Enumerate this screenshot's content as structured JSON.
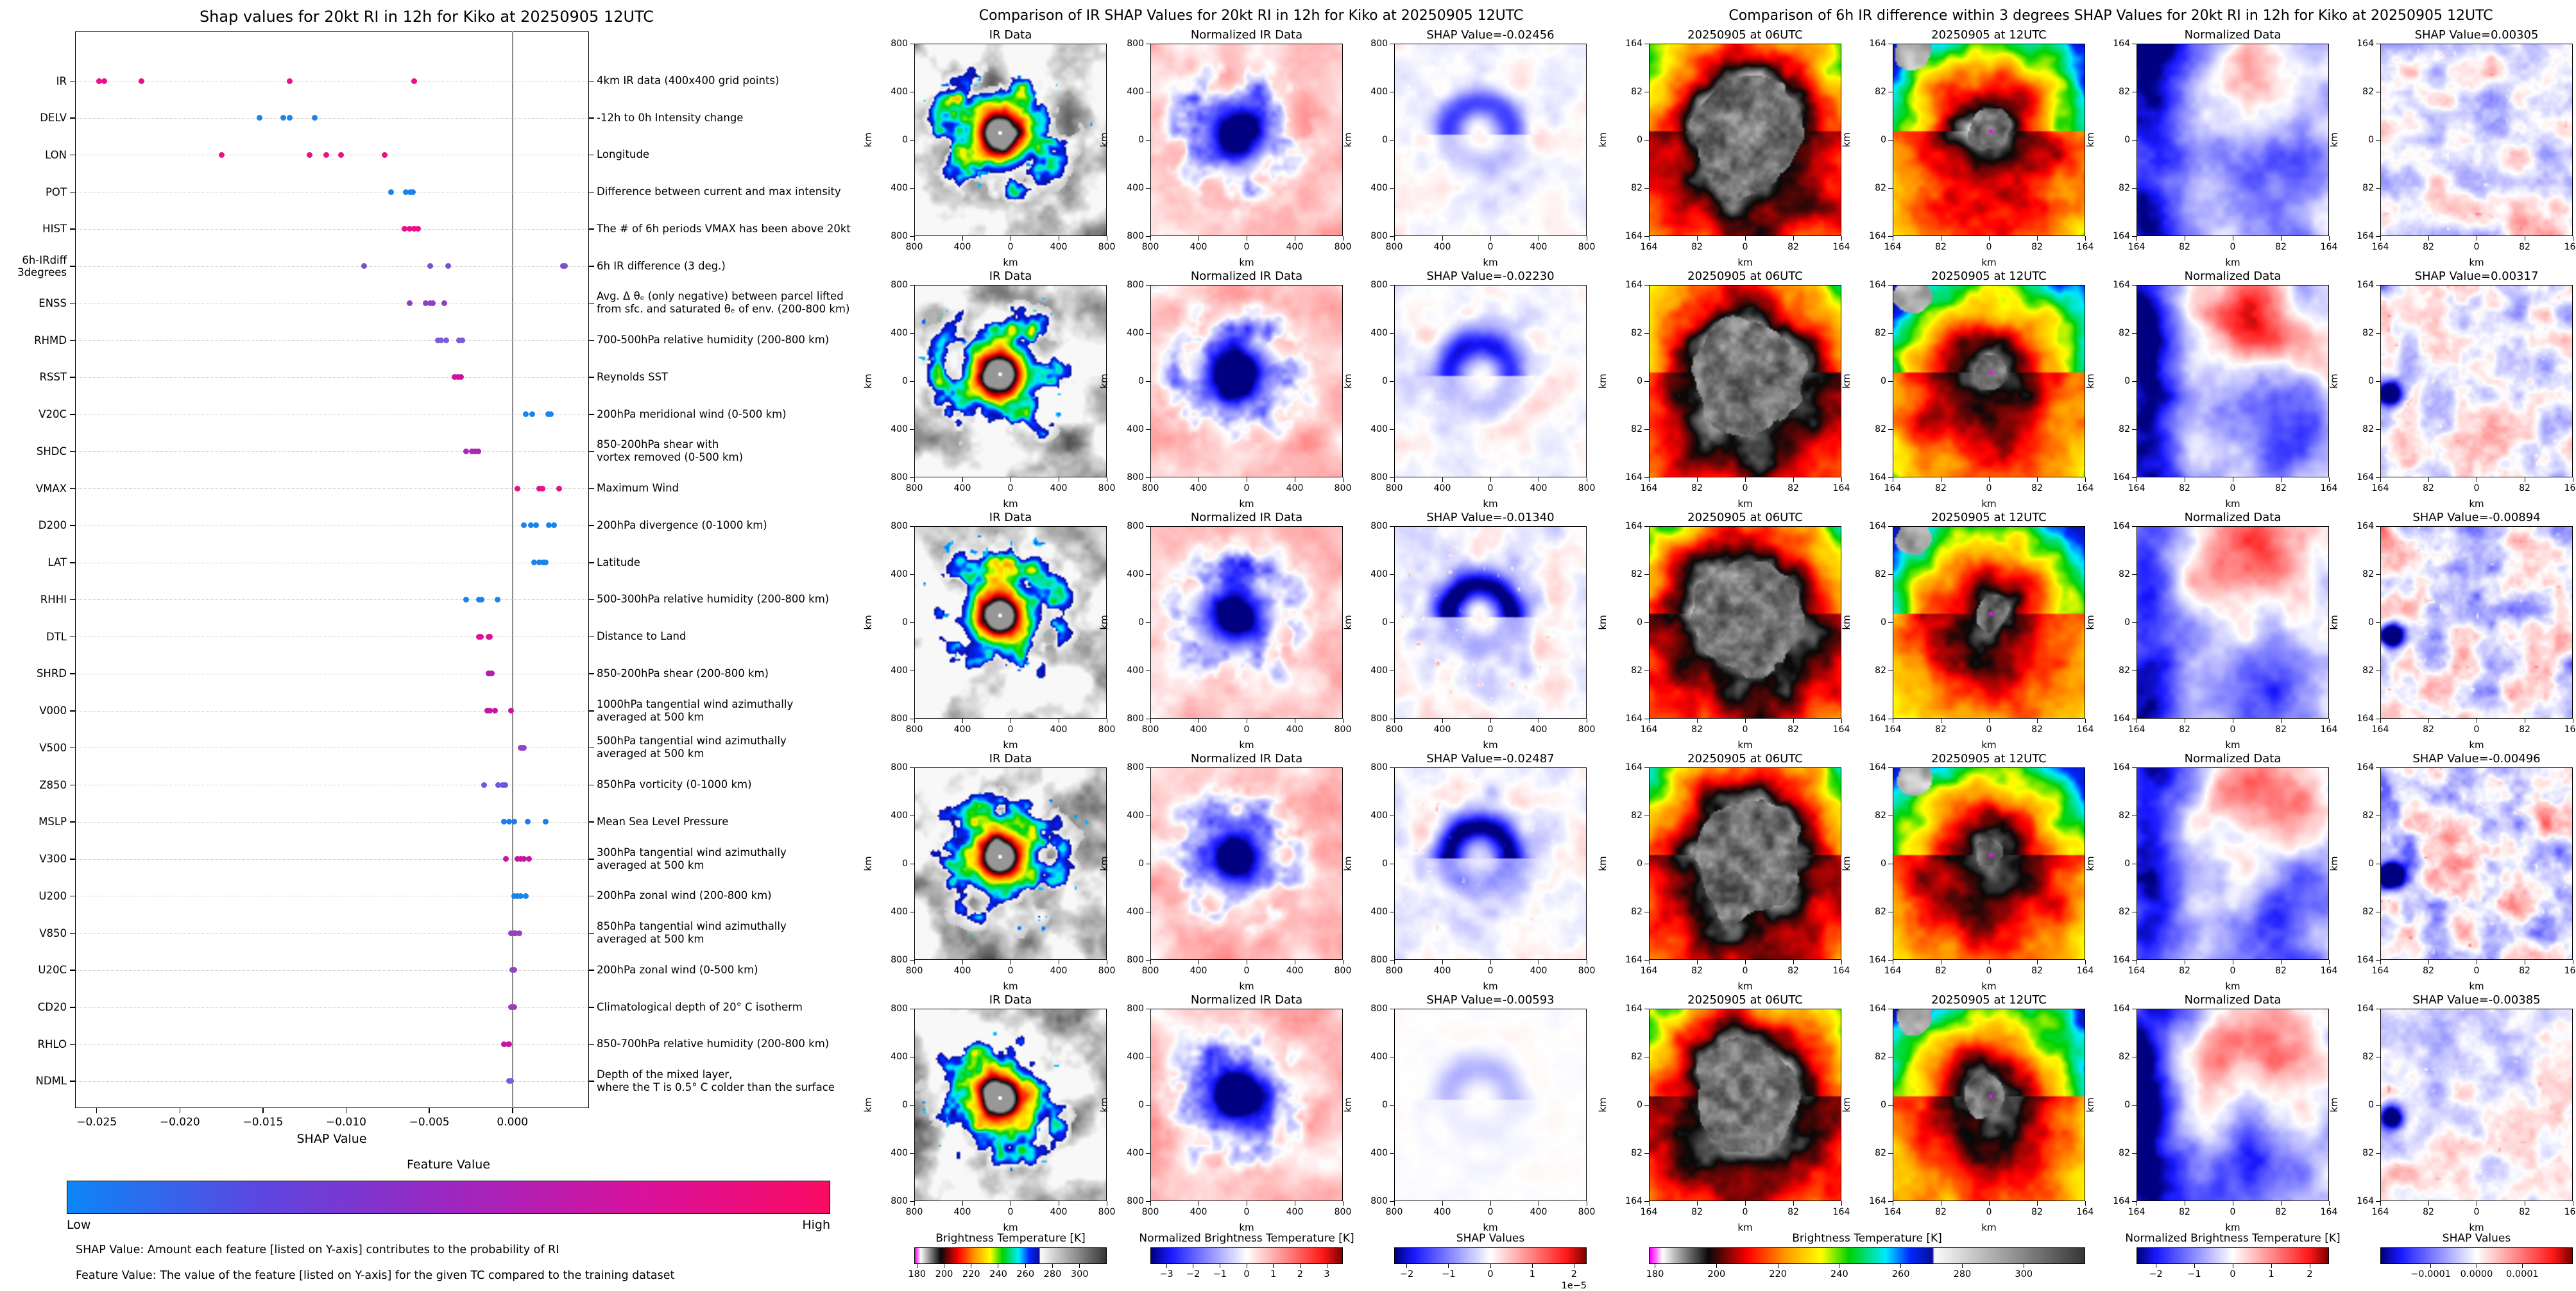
{
  "chart_data": [
    {
      "type": "scatter",
      "title": "Shap values for 20kt RI in 12h for Kiko at 20250905 12UTC",
      "xlabel": "SHAP Value",
      "xlim": [
        -0.0263,
        0.0046
      ],
      "x_ticks": [
        [
          "−0.025",
          -0.025
        ],
        [
          "−0.020",
          -0.02
        ],
        [
          "−0.015",
          -0.015
        ],
        [
          "−0.010",
          -0.01
        ],
        [
          "−0.005",
          -0.005
        ],
        [
          "0.000",
          0
        ]
      ],
      "colorbar": {
        "title": "Feature Value",
        "low_label": "Low",
        "high_label": "High",
        "stops": [
          "#0b86f8",
          "#5b47e0",
          "#9c27c0",
          "#d8129e",
          "#fb0b63"
        ]
      },
      "footnotes": [
        "SHAP Value: Amount each feature [listed on Y-axis] contributes to the probability of RI",
        "Feature Value: The value of the feature [listed on Y-axis] for the given TC compared to the training dataset"
      ],
      "features": [
        {
          "name": "IR",
          "desc": "4km IR data (400x400 grid points)",
          "color": "#ea0f8b",
          "dots": [
            -0.02487,
            -0.02456,
            -0.0223,
            -0.0134,
            -0.00593
          ]
        },
        {
          "name": "DELV",
          "desc": "-12h to 0h Intensity change",
          "color": "#1b84ec",
          "dots": [
            -0.0152,
            -0.0138,
            -0.0134,
            -0.0119
          ]
        },
        {
          "name": "LON",
          "desc": "Longitude",
          "color": "#ea0f8b",
          "dots": [
            -0.0175,
            -0.0122,
            -0.0112,
            -0.0103,
            -0.0077
          ]
        },
        {
          "name": "POT",
          "desc": "Difference between current and max intensity",
          "color": "#1b84ec",
          "dots": [
            -0.0073,
            -0.0064,
            -0.00615,
            -0.006
          ]
        },
        {
          "name": "HIST",
          "desc": "The # of 6h periods VMAX has been above 20kt",
          "color": "#ea0f8b",
          "dots": [
            -0.0065,
            -0.0062,
            -0.0059,
            -0.0057
          ]
        },
        {
          "name": "6h-IRdiff\n3degrees",
          "desc": "6h IR difference (3 deg.)",
          "color": "#7d4fc9",
          "dots": [
            -0.00894,
            -0.00496,
            -0.00385,
            0.00305,
            0.00317
          ]
        },
        {
          "name": "ENSS",
          "desc": "Avg. Δ θₑ (only negative) between parcel lifted\nfrom sfc. and saturated θₑ of env. (200-800 km)",
          "color": "#8f3fc4",
          "dots": [
            -0.0062,
            -0.0052,
            -0.00495,
            -0.0048,
            -0.0041
          ]
        },
        {
          "name": "RHMD",
          "desc": "700-500hPa relative humidity (200-800 km)",
          "color": "#7c5ad8",
          "dots": [
            -0.0045,
            -0.0043,
            -0.004,
            -0.0032,
            -0.003
          ]
        },
        {
          "name": "RSST",
          "desc": "Reynolds SST",
          "color": "#cc10a0",
          "dots": [
            -0.0035,
            -0.0033,
            -0.0031
          ]
        },
        {
          "name": "V20C",
          "desc": "200hPa meridional wind (0-500 km)",
          "color": "#1b84ec",
          "dots": [
            0.0008,
            0.0012,
            0.00215,
            0.0023
          ]
        },
        {
          "name": "SHDC",
          "desc": "850-200hPa shear with\nvortex removed (0-500 km)",
          "color": "#a928b4",
          "dots": [
            -0.0028,
            -0.00245,
            -0.00225,
            -0.00205
          ]
        },
        {
          "name": "VMAX",
          "desc": "Maximum Wind",
          "color": "#ea0f8b",
          "dots": [
            0.0003,
            0.0016,
            0.0018,
            0.0028
          ]
        },
        {
          "name": "D200",
          "desc": "200hPa divergence (0-1000 km)",
          "color": "#1b84ec",
          "dots": [
            0.0007,
            0.0011,
            0.0014,
            0.0022,
            0.0025
          ]
        },
        {
          "name": "LAT",
          "desc": "Latitude",
          "color": "#1b84ec",
          "dots": [
            0.0013,
            0.0016,
            0.00185,
            0.002
          ]
        },
        {
          "name": "RHHI",
          "desc": "500-300hPa relative humidity (200-800 km)",
          "color": "#1b84ec",
          "dots": [
            -0.0028,
            -0.002,
            -0.00185,
            -0.0009
          ]
        },
        {
          "name": "DTL",
          "desc": "Distance to Land",
          "color": "#e01197",
          "dots": [
            -0.002,
            -0.0019,
            -0.00145,
            -0.00135
          ]
        },
        {
          "name": "SHRD",
          "desc": "850-200hPa shear (200-800 km)",
          "color": "#ab22ae",
          "dots": [
            -0.00145,
            -0.00135,
            -0.00125
          ]
        },
        {
          "name": "V000",
          "desc": "1000hPa tangential wind azimuthally\naveraged at 500 km",
          "color": "#c715a3",
          "dots": [
            -0.0015,
            -0.00135,
            -0.00105,
            -0.0001
          ]
        },
        {
          "name": "V500",
          "desc": "500hPa tangential wind azimuthally\naveraged at 500 km",
          "color": "#8f46c8",
          "dots": [
            0.0005,
            0.0006,
            0.0007
          ]
        },
        {
          "name": "Z850",
          "desc": "850hPa vorticity (0-1000 km)",
          "color": "#6c59da",
          "dots": [
            -0.0017,
            -0.00085,
            -0.0006,
            -0.00045
          ]
        },
        {
          "name": "MSLP",
          "desc": "Mean Sea Level Pressure",
          "color": "#1f7cea",
          "dots": [
            -0.0005,
            -0.0002,
            0.0001,
            0.0009,
            0.002
          ]
        },
        {
          "name": "V300",
          "desc": "300hPa tangential wind azimuthally\naveraged at 500 km",
          "color": "#c914a3",
          "dots": [
            -0.0004,
            0.0003,
            0.0005,
            0.0007,
            0.001
          ]
        },
        {
          "name": "U200",
          "desc": "200hPa zonal wind (200-800 km)",
          "color": "#1b84ec",
          "dots": [
            0.0001,
            0.0003,
            0.0005,
            0.0008
          ]
        },
        {
          "name": "V850",
          "desc": "850hPa tangential wind azimuthally\naveraged at 500 km",
          "color": "#9a3fbf",
          "dots": [
            -0.0001,
            0.0001,
            0.0002,
            0.0004
          ]
        },
        {
          "name": "U20C",
          "desc": "200hPa zonal wind (0-500 km)",
          "color": "#8f46c8",
          "dots": [
            0,
            0.0001
          ]
        },
        {
          "name": "CD20",
          "desc": "Climatological depth of 20° C isotherm",
          "color": "#9a3fbf",
          "dots": [
            -0.0001,
            0,
            0.0001
          ]
        },
        {
          "name": "RHLO",
          "desc": "850-700hPa relative humidity (200-800 km)",
          "color": "#c715a3",
          "dots": [
            -0.0005,
            -0.00025,
            -0.0002
          ]
        },
        {
          "name": "NDML",
          "desc": "Depth of the mixed layer,\nwhere the T is 0.5° C colder than the surface",
          "color": "#7c5ad8",
          "dots": [
            -0.0002,
            -0.0001
          ]
        }
      ]
    },
    {
      "type": "heatmap",
      "title": "Comparison of IR SHAP Values for 20kt RI in 12h for Kiko at 20250905 12UTC",
      "col_titles": [
        "IR Data",
        "Normalized IR Data"
      ],
      "axis_ticks": [
        "800",
        "400",
        "0",
        "400",
        "800"
      ],
      "axis_label": "km",
      "rows": [
        {
          "shap_label": "SHAP Value=-0.02456",
          "shap_value": -0.02456
        },
        {
          "shap_label": "SHAP Value=-0.02230",
          "shap_value": -0.0223
        },
        {
          "shap_label": "SHAP Value=-0.01340",
          "shap_value": -0.0134
        },
        {
          "shap_label": "SHAP Value=-0.02487",
          "shap_value": -0.02487
        },
        {
          "shap_label": "SHAP Value=-0.00593",
          "shap_value": -0.00593
        }
      ],
      "colorbars": [
        {
          "title": "Brightness Temperature [K]",
          "cmap": "ir",
          "range": [
            178,
            320
          ],
          "ticks": [
            [
              "180",
              180
            ],
            [
              "200",
              200
            ],
            [
              "220",
              220
            ],
            [
              "240",
              240
            ],
            [
              "260",
              260
            ],
            [
              "280",
              280
            ],
            [
              "300",
              300
            ]
          ]
        },
        {
          "title": "Normalized Brightness Temperature [K]",
          "cmap": "seismic",
          "range": [
            -3.6,
            3.6
          ],
          "ticks": [
            [
              "−3",
              -3
            ],
            [
              "−2",
              -2
            ],
            [
              "−1",
              -1
            ],
            [
              "0",
              0
            ],
            [
              "1",
              1
            ],
            [
              "2",
              2
            ],
            [
              "3",
              3
            ]
          ]
        },
        {
          "title": "SHAP Values",
          "cmap": "seismic",
          "range": [
            -2.3,
            2.3
          ],
          "ticks": [
            [
              "−2",
              -2
            ],
            [
              "−1",
              -1
            ],
            [
              "0",
              0
            ],
            [
              "1",
              1
            ],
            [
              "2",
              2
            ]
          ],
          "multiplier": "1e−5"
        }
      ]
    },
    {
      "type": "heatmap",
      "title": "Comparison of 6h IR difference within 3 degrees SHAP Values for 20kt RI in 12h for Kiko at 20250905 12UTC",
      "col_titles": [
        "20250905 at 06UTC",
        "20250905 at 12UTC",
        "Normalized Data"
      ],
      "axis_ticks": [
        "164",
        "82",
        "0",
        "82",
        "164"
      ],
      "axis_label": "km",
      "rows": [
        {
          "shap_label": "SHAP Value=0.00305",
          "shap_value": 0.00305
        },
        {
          "shap_label": "SHAP Value=0.00317",
          "shap_value": 0.00317
        },
        {
          "shap_label": "SHAP Value=-0.00894",
          "shap_value": -0.00894
        },
        {
          "shap_label": "SHAP Value=-0.00496",
          "shap_value": -0.00496
        },
        {
          "shap_label": "SHAP Value=-0.00385",
          "shap_value": -0.00385
        }
      ],
      "colorbars": [
        {
          "title": "Brightness Temperature [K]",
          "cmap": "ir",
          "range": [
            178,
            320
          ],
          "ticks": [
            [
              "180",
              180
            ],
            [
              "200",
              200
            ],
            [
              "220",
              220
            ],
            [
              "240",
              240
            ],
            [
              "260",
              260
            ],
            [
              "280",
              280
            ],
            [
              "300",
              300
            ]
          ]
        },
        {
          "title": "Normalized Brightness Temperature [K]",
          "cmap": "seismic",
          "range": [
            -2.5,
            2.5
          ],
          "ticks": [
            [
              "−2",
              -2
            ],
            [
              "−1",
              -1
            ],
            [
              "0",
              0
            ],
            [
              "1",
              1
            ],
            [
              "2",
              2
            ]
          ]
        },
        {
          "title": "SHAP Values",
          "cmap": "seismic",
          "range": [
            -0.00021,
            0.00021
          ],
          "ticks": [
            [
              "−0.0001",
              -0.0001
            ],
            [
              "0.0000",
              0
            ],
            [
              "0.0001",
              0.0001
            ]
          ]
        }
      ]
    }
  ]
}
